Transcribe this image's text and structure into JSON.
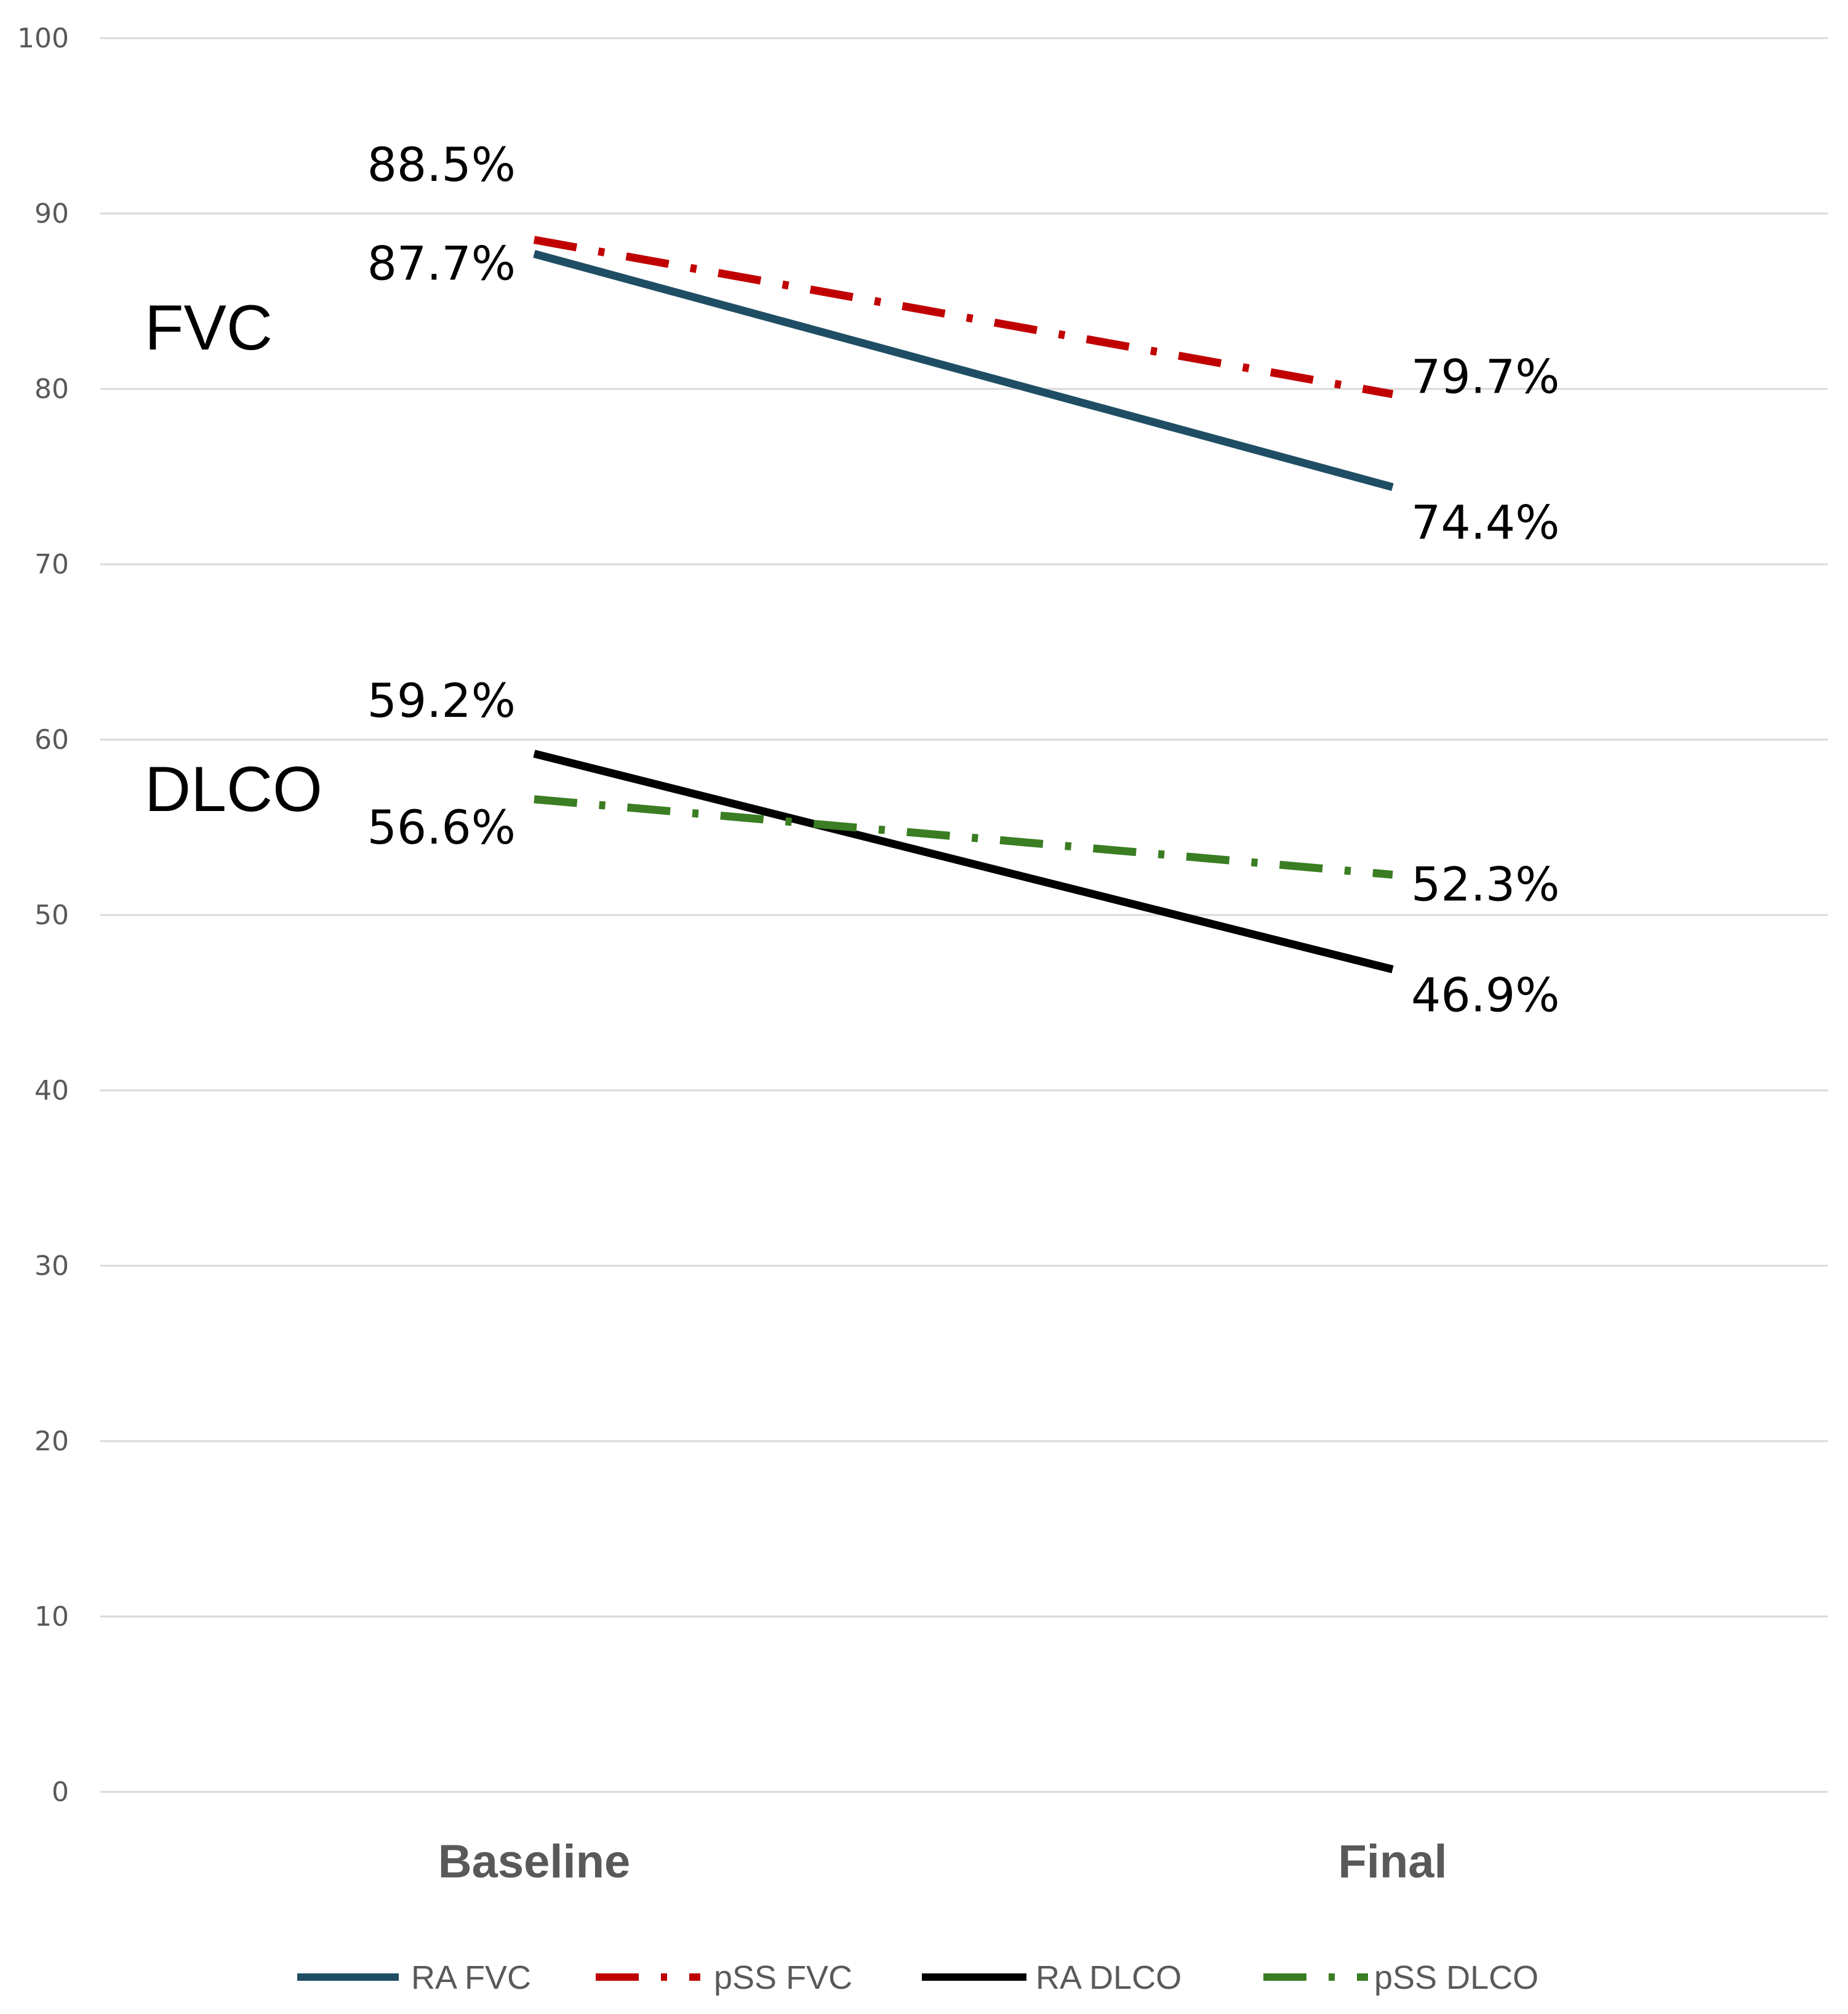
{
  "chart_data": {
    "type": "line",
    "categories": [
      "Baseline",
      "Final"
    ],
    "ylim": [
      0,
      100
    ],
    "yticks": [
      0,
      10,
      20,
      30,
      40,
      50,
      60,
      70,
      80,
      90,
      100
    ],
    "grid": true,
    "series": [
      {
        "name": "RA FVC",
        "values": [
          87.7,
          74.4
        ],
        "labels": [
          "87.7%",
          "74.4%"
        ],
        "color": "#1f4e64",
        "dash": "solid"
      },
      {
        "name": "pSS FVC",
        "values": [
          88.5,
          79.7
        ],
        "labels": [
          "88.5%",
          "79.7%"
        ],
        "color": "#c00000",
        "dash": "long-dash-dot"
      },
      {
        "name": "RA DLCO",
        "values": [
          59.2,
          46.9
        ],
        "labels": [
          "59.2%",
          "46.9%"
        ],
        "color": "#000000",
        "dash": "solid"
      },
      {
        "name": "pSS DLCO",
        "values": [
          56.6,
          52.3
        ],
        "labels": [
          "56.6%",
          "52.3%"
        ],
        "color": "#3a7d22",
        "dash": "long-dash-dot"
      }
    ],
    "annotations": [
      "FVC",
      "DLCO"
    ],
    "legend_position": "bottom"
  }
}
